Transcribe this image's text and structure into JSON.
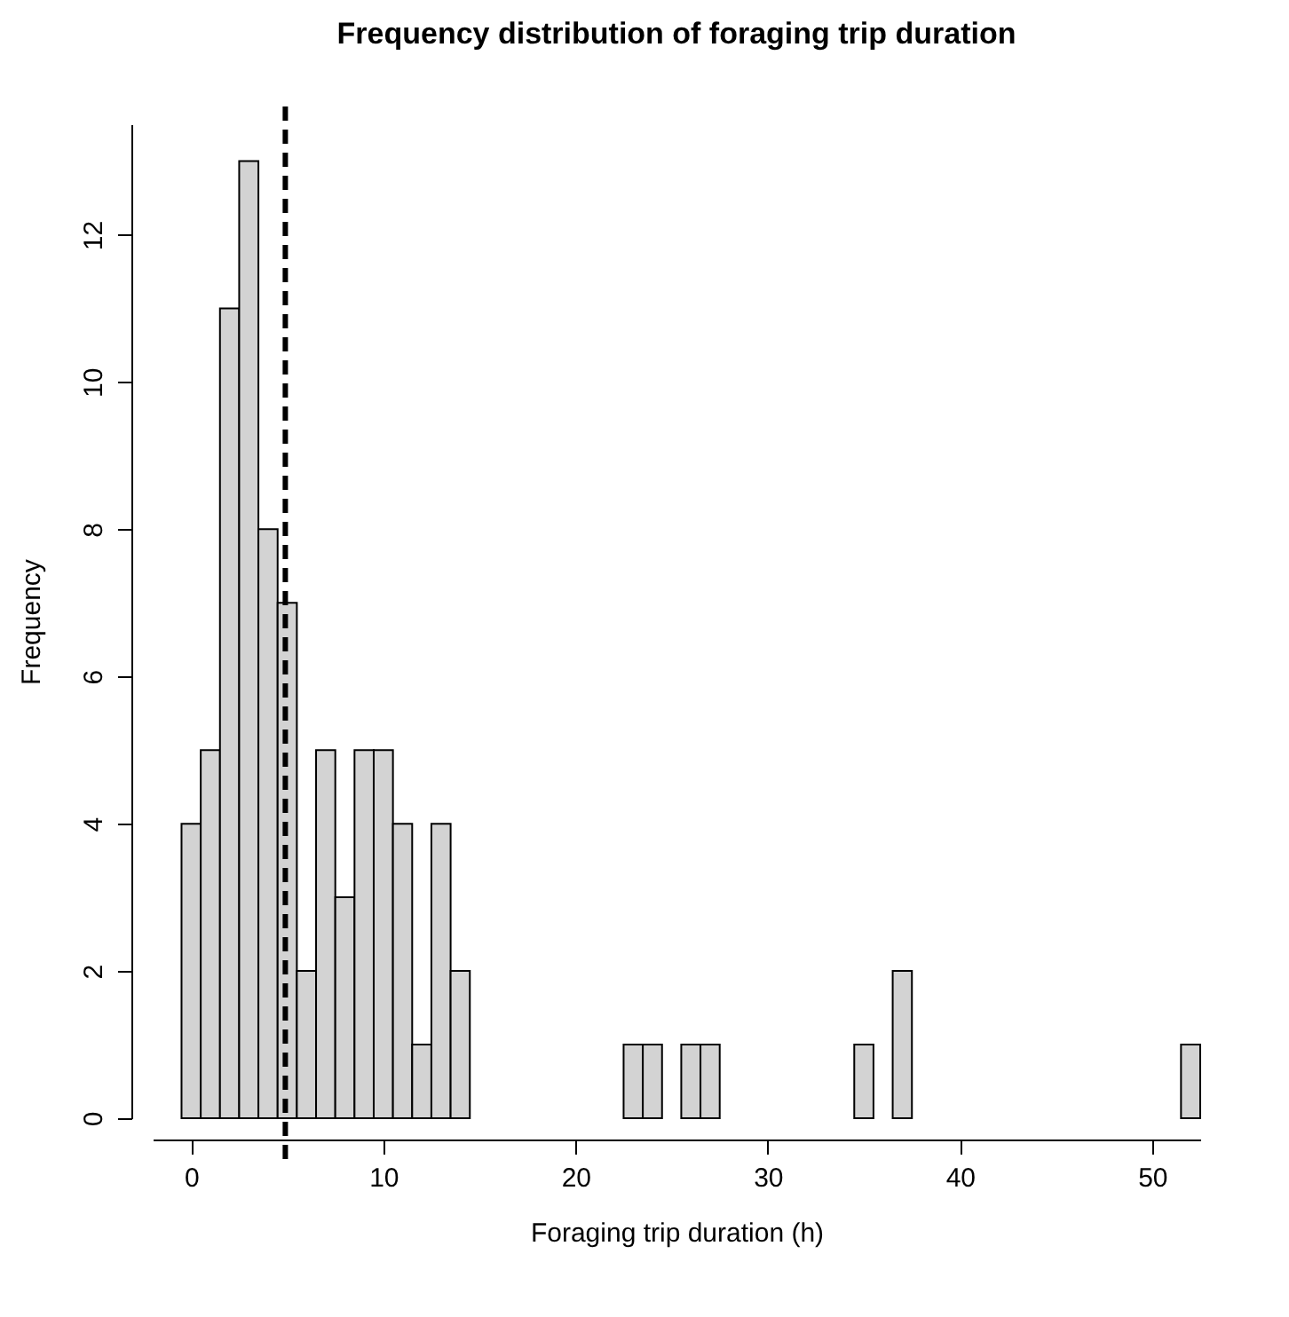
{
  "chart_data": {
    "type": "histogram",
    "title": "Frequency distribution of foraging trip duration",
    "xlabel": "Foraging trip duration (h)",
    "ylabel": "Frequency",
    "bins": [
      -0.5,
      0.5,
      1.5,
      2.5,
      3.5,
      4.5,
      5.5,
      6.5,
      7.5,
      8.5,
      9.5,
      10.5,
      11.5,
      12.5,
      13.5,
      14.5,
      15.5,
      16.5,
      17.5,
      18.5,
      19.5,
      20.5,
      21.5,
      22.5,
      23.5,
      24.5,
      25.5,
      26.5,
      27.5,
      28.5,
      29.5,
      30.5,
      31.5,
      32.5,
      33.5,
      34.5,
      35.5,
      36.5,
      37.5,
      38.5,
      39.5,
      40.5,
      41.5,
      42.5,
      43.5,
      44.5,
      45.5,
      46.5,
      47.5,
      48.5,
      49.5,
      50.5,
      51.5,
      52.5
    ],
    "values": [
      4,
      5,
      11,
      13,
      8,
      7,
      2,
      5,
      3,
      5,
      5,
      4,
      1,
      4,
      2,
      0,
      0,
      0,
      0,
      0,
      0,
      0,
      0,
      1,
      1,
      0,
      1,
      1,
      0,
      0,
      0,
      0,
      0,
      0,
      0,
      1,
      0,
      2,
      0,
      0,
      0,
      0,
      0,
      0,
      0,
      0,
      0,
      0,
      0,
      0,
      0,
      0,
      1
    ],
    "color": "#d3d3d3",
    "xlim": [
      -2,
      52.5
    ],
    "xticks": [
      0,
      10,
      20,
      30,
      40,
      50
    ],
    "ylim": [
      0,
      13.5
    ],
    "yticks": [
      0,
      2,
      4,
      6,
      8,
      10,
      12
    ],
    "ref_lines": [
      {
        "axis": "x",
        "value": 4.9,
        "color": "#000000",
        "line_style": "dashed"
      }
    ],
    "grid": false
  }
}
